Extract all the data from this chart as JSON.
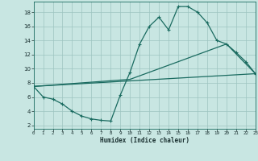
{
  "xlabel": "Humidex (Indice chaleur)",
  "xlim": [
    0,
    23
  ],
  "ylim": [
    1.5,
    19.5
  ],
  "yticks": [
    2,
    4,
    6,
    8,
    10,
    12,
    14,
    16,
    18
  ],
  "xticks": [
    0,
    1,
    2,
    3,
    4,
    5,
    6,
    7,
    8,
    9,
    10,
    11,
    12,
    13,
    14,
    15,
    16,
    17,
    18,
    19,
    20,
    21,
    22,
    23
  ],
  "bg_color": "#c8e6e2",
  "grid_color": "#9dc4c0",
  "line_color": "#1a6b60",
  "series1_x": [
    0,
    1,
    2,
    3,
    4,
    5,
    6,
    7,
    8,
    9,
    10,
    11,
    12,
    13,
    14,
    15,
    16,
    17,
    18,
    19,
    20,
    21,
    22,
    23
  ],
  "series1_y": [
    7.5,
    6.0,
    5.7,
    5.0,
    4.0,
    3.3,
    2.9,
    2.7,
    2.6,
    6.3,
    9.5,
    13.5,
    16.0,
    17.3,
    15.5,
    18.8,
    18.8,
    18.0,
    16.5,
    14.0,
    13.5,
    12.3,
    11.0,
    9.3
  ],
  "series2_x": [
    0,
    23
  ],
  "series2_y": [
    7.5,
    9.3
  ],
  "series3_x": [
    0,
    10,
    20,
    23
  ],
  "series3_y": [
    7.5,
    8.5,
    13.5,
    9.3
  ]
}
